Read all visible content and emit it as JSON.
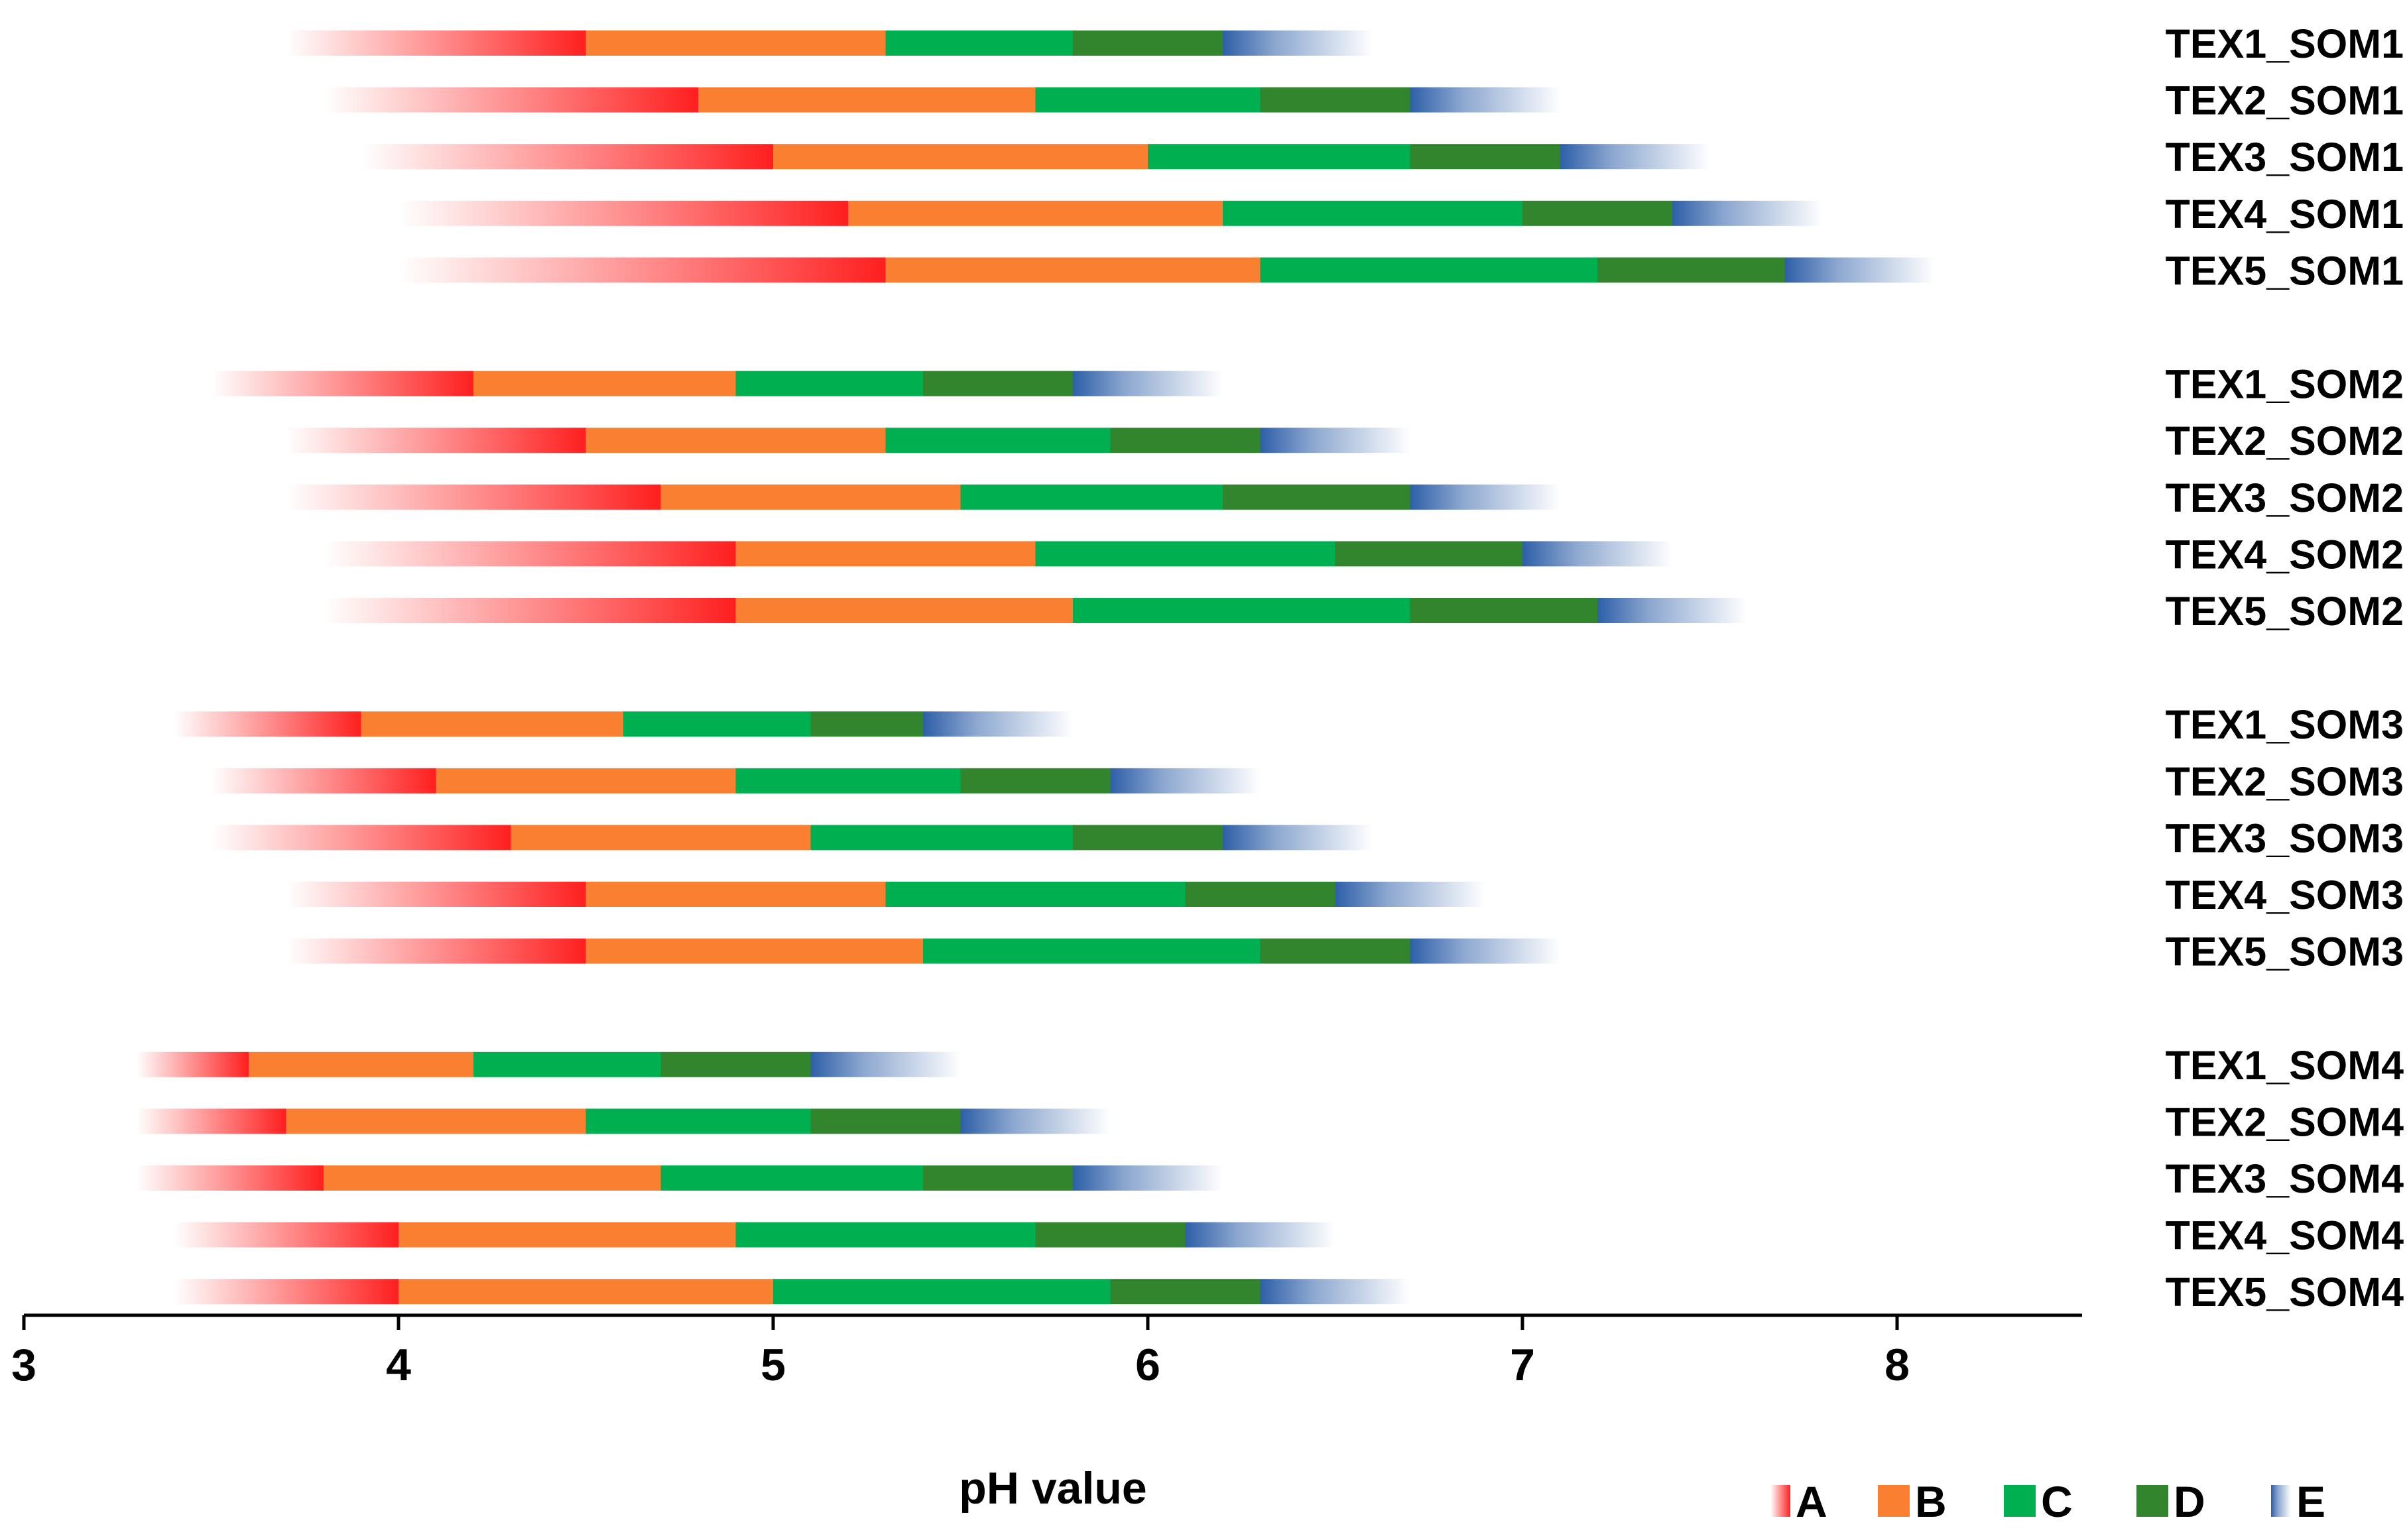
{
  "chart_data": {
    "type": "bar",
    "subtype": "horizontal-stacked-range",
    "xlabel": "pH value",
    "xlim": [
      3,
      8.5
    ],
    "xticks": [
      3,
      4,
      5,
      6,
      7,
      8
    ],
    "legend_position": "bottom-right",
    "segments": [
      {
        "name": "A",
        "color": "#ff1f1f",
        "style": "gradient-fade-left"
      },
      {
        "name": "B",
        "color": "#f98030"
      },
      {
        "name": "C",
        "color": "#00b050"
      },
      {
        "name": "D",
        "color": "#33852d"
      },
      {
        "name": "E",
        "color": "#2e5fa8",
        "style": "gradient-fade-right"
      }
    ],
    "groups": [
      {
        "name": "SOM1",
        "rows": [
          {
            "label": "TEX1_SOM1",
            "start": 3.7,
            "boundaries": [
              4.5,
              5.3,
              5.8,
              6.2
            ],
            "end": 6.6
          },
          {
            "label": "TEX2_SOM1",
            "start": 3.8,
            "boundaries": [
              4.8,
              5.7,
              6.3,
              6.7
            ],
            "end": 7.1
          },
          {
            "label": "TEX3_SOM1",
            "start": 3.9,
            "boundaries": [
              5.0,
              6.0,
              6.7,
              7.1
            ],
            "end": 7.5
          },
          {
            "label": "TEX4_SOM1",
            "start": 4.0,
            "boundaries": [
              5.2,
              6.2,
              7.0,
              7.4
            ],
            "end": 7.8
          },
          {
            "label": "TEX5_SOM1",
            "start": 4.0,
            "boundaries": [
              5.3,
              6.3,
              7.2,
              7.7
            ],
            "end": 8.1
          }
        ]
      },
      {
        "name": "SOM2",
        "rows": [
          {
            "label": "TEX1_SOM2",
            "start": 3.5,
            "boundaries": [
              4.2,
              4.9,
              5.4,
              5.8
            ],
            "end": 6.2
          },
          {
            "label": "TEX2_SOM2",
            "start": 3.7,
            "boundaries": [
              4.5,
              5.3,
              5.9,
              6.3
            ],
            "end": 6.7
          },
          {
            "label": "TEX3_SOM2",
            "start": 3.7,
            "boundaries": [
              4.7,
              5.5,
              6.2,
              6.7
            ],
            "end": 7.1
          },
          {
            "label": "TEX4_SOM2",
            "start": 3.8,
            "boundaries": [
              4.9,
              5.7,
              6.5,
              7.0
            ],
            "end": 7.4
          },
          {
            "label": "TEX5_SOM2",
            "start": 3.8,
            "boundaries": [
              4.9,
              5.8,
              6.7,
              7.2
            ],
            "end": 7.6
          }
        ]
      },
      {
        "name": "SOM3",
        "rows": [
          {
            "label": "TEX1_SOM3",
            "start": 3.4,
            "boundaries": [
              3.9,
              4.6,
              5.1,
              5.4
            ],
            "end": 5.8
          },
          {
            "label": "TEX2_SOM3",
            "start": 3.5,
            "boundaries": [
              4.1,
              4.9,
              5.5,
              5.9
            ],
            "end": 6.3
          },
          {
            "label": "TEX3_SOM3",
            "start": 3.5,
            "boundaries": [
              4.3,
              5.1,
              5.8,
              6.2
            ],
            "end": 6.6
          },
          {
            "label": "TEX4_SOM3",
            "start": 3.7,
            "boundaries": [
              4.5,
              5.3,
              6.1,
              6.5
            ],
            "end": 6.9
          },
          {
            "label": "TEX5_SOM3",
            "start": 3.7,
            "boundaries": [
              4.5,
              5.4,
              6.3,
              6.7
            ],
            "end": 7.1
          }
        ]
      },
      {
        "name": "SOM4",
        "rows": [
          {
            "label": "TEX1_SOM4",
            "start": 3.3,
            "boundaries": [
              3.6,
              4.2,
              4.7,
              5.1
            ],
            "end": 5.5
          },
          {
            "label": "TEX2_SOM4",
            "start": 3.3,
            "boundaries": [
              3.7,
              4.5,
              5.1,
              5.5
            ],
            "end": 5.9
          },
          {
            "label": "TEX3_SOM4",
            "start": 3.3,
            "boundaries": [
              3.8,
              4.7,
              5.4,
              5.8
            ],
            "end": 6.2
          },
          {
            "label": "TEX4_SOM4",
            "start": 3.4,
            "boundaries": [
              4.0,
              4.9,
              5.7,
              6.1
            ],
            "end": 6.5
          },
          {
            "label": "TEX5_SOM4",
            "start": 3.4,
            "boundaries": [
              4.0,
              5.0,
              5.9,
              6.3
            ],
            "end": 6.7
          }
        ]
      }
    ]
  }
}
